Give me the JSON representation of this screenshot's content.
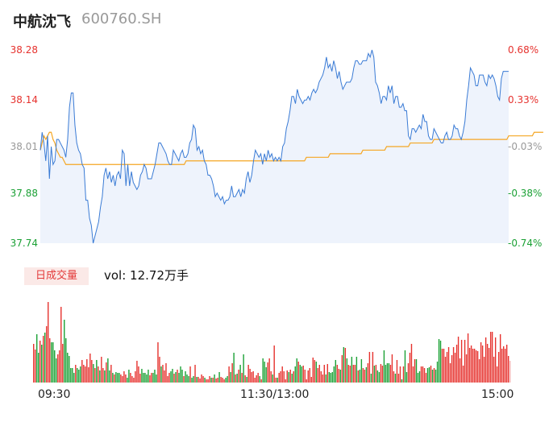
{
  "header": {
    "name": "中航沈飞",
    "code": "600760.SH"
  },
  "colors": {
    "up": "#e6322e",
    "down": "#1ba135",
    "flat": "#999999",
    "price_line": "#3a7bd5",
    "avg_line": "#f5a623",
    "vol_button_bg": "#fbe9e7"
  },
  "volume_panel": {
    "button_label": "日成交量",
    "summary": "vol: 12.72万手"
  },
  "chart_data": [
    {
      "type": "line",
      "title": "",
      "xlabel": "",
      "ylabel": "",
      "x_ticks": [
        "09:30",
        "11:30/13:00",
        "15:00"
      ],
      "y_ticks": [
        {
          "price": "38.28",
          "pct": "0.68%",
          "dir": "up"
        },
        {
          "price": "38.14",
          "pct": "0.33%",
          "dir": "up"
        },
        {
          "price": "38.01",
          "pct": "-0.03%",
          "dir": "flat"
        },
        {
          "price": "37.88",
          "pct": "-0.38%",
          "dir": "down"
        },
        {
          "price": "37.74",
          "pct": "-0.74%",
          "dir": "down"
        }
      ],
      "ylim": [
        37.74,
        38.28
      ],
      "grid": false,
      "series": [
        {
          "values": [
            38.0,
            38.05,
            38.02,
            37.97,
            38.04,
            37.92,
            38.01,
            37.96,
            37.97,
            38.03,
            38.03,
            38.02,
            38.01,
            38.0,
            37.98,
            38.03,
            38.12,
            38.16,
            38.16,
            38.07,
            38.02,
            38.0,
            37.99,
            37.96,
            37.95,
            37.86,
            37.86,
            37.81,
            37.79,
            37.74,
            37.76,
            37.78,
            37.8,
            37.84,
            37.87,
            37.93,
            37.95,
            37.92,
            37.94,
            37.91,
            37.93,
            37.9,
            37.93,
            37.94,
            37.92,
            38.0,
            37.99,
            37.9,
            37.96,
            37.9,
            37.94,
            37.91,
            37.9,
            37.89,
            37.9,
            37.93,
            37.94,
            37.96,
            37.95,
            37.92,
            37.92,
            37.92,
            37.94,
            37.96,
            37.99,
            38.02,
            38.02,
            38.01,
            38.0,
            37.99,
            37.97,
            37.96,
            37.96,
            38.0,
            37.99,
            37.98,
            37.97,
            37.99,
            38.0,
            37.98,
            37.98,
            37.99,
            38.02,
            38.03,
            38.07,
            38.06,
            38.0,
            38.01,
            37.99,
            38.0,
            37.97,
            37.96,
            37.93,
            37.93,
            37.92,
            37.9,
            37.87,
            37.88,
            37.87,
            37.86,
            37.87,
            37.85,
            37.86,
            37.86,
            37.87,
            37.9,
            37.87,
            37.87,
            37.88,
            37.89,
            37.87,
            37.89,
            37.88,
            37.92,
            37.94,
            37.91,
            37.93,
            37.97,
            38.0,
            37.99,
            37.98,
            37.99,
            37.96,
            37.99,
            37.97,
            38.0,
            37.98,
            37.99,
            37.97,
            37.98,
            37.97,
            37.98,
            37.97,
            38.01,
            38.02,
            38.06,
            38.08,
            38.11,
            38.15,
            38.15,
            38.13,
            38.17,
            38.15,
            38.14,
            38.13,
            38.14,
            38.14,
            38.15,
            38.14,
            38.16,
            38.17,
            38.16,
            38.17,
            38.19,
            38.2,
            38.21,
            38.23,
            38.26,
            38.23,
            38.24,
            38.22,
            38.25,
            38.23,
            38.2,
            38.22,
            38.19,
            38.17,
            38.18,
            38.19,
            38.19,
            38.19,
            38.2,
            38.23,
            38.25,
            38.25,
            38.24,
            38.24,
            38.25,
            38.25,
            38.25,
            38.27,
            38.26,
            38.28,
            38.26,
            38.19,
            38.18,
            38.16,
            38.13,
            38.15,
            38.15,
            38.14,
            38.18,
            38.16,
            38.18,
            38.13,
            38.15,
            38.15,
            38.12,
            38.12,
            38.13,
            38.11,
            38.11,
            38.04,
            38.03,
            38.06,
            38.06,
            38.05,
            38.06,
            38.07,
            38.06,
            38.1,
            38.08,
            38.08,
            38.04,
            38.03,
            38.03,
            38.06,
            38.05,
            38.04,
            38.03,
            38.02,
            38.02,
            38.04,
            38.05,
            38.03,
            38.03,
            38.04,
            38.07,
            38.06,
            38.06,
            38.04,
            38.03,
            38.05,
            38.08,
            38.14,
            38.18,
            38.23,
            38.22,
            38.21,
            38.18,
            38.18,
            38.21,
            38.21,
            38.21,
            38.19,
            38.18,
            38.21,
            38.2,
            38.21,
            38.2,
            38.18,
            38.15,
            38.14,
            38.2,
            38.22,
            38.22,
            38.22,
            38.22
          ]
        },
        {
          "values": [
            38.0,
            38.02,
            38.04,
            38.03,
            38.04,
            38.05,
            38.05,
            38.03,
            38.02,
            38.0,
            37.99,
            37.98,
            37.98,
            37.97,
            37.96,
            37.96,
            37.96,
            37.96,
            37.96,
            37.96,
            37.96,
            37.96,
            37.96,
            37.96,
            37.96,
            37.96,
            37.96,
            37.96,
            37.96,
            37.96,
            37.96,
            37.96,
            37.96,
            37.96,
            37.96,
            37.96,
            37.96,
            37.96,
            37.96,
            37.96,
            37.96,
            37.96,
            37.96,
            37.96,
            37.96,
            37.96,
            37.96,
            37.96,
            37.96,
            37.96,
            37.96,
            37.96,
            37.96,
            37.96,
            37.96,
            37.96,
            37.96,
            37.96,
            37.96,
            37.96,
            37.96,
            37.96,
            37.96,
            37.96,
            37.96,
            37.96,
            37.96,
            37.96,
            37.96,
            37.96,
            37.96,
            37.96,
            37.96,
            37.96,
            37.96,
            37.96,
            37.96,
            37.96,
            37.96,
            37.96,
            37.97,
            37.97,
            37.97,
            37.97,
            37.97,
            37.97,
            37.97,
            37.97,
            37.97,
            37.97,
            37.97,
            37.97,
            37.97,
            37.97,
            37.97,
            37.97,
            37.97,
            37.97,
            37.97,
            37.97,
            37.97,
            37.97,
            37.97,
            37.97,
            37.97,
            37.97,
            37.97,
            37.97,
            37.97,
            37.97,
            37.97,
            37.97,
            37.97,
            37.97,
            37.97,
            37.97,
            37.97,
            37.97,
            37.97,
            37.97,
            37.97,
            37.97,
            37.97,
            37.97,
            37.97,
            37.97,
            37.97,
            37.97,
            37.97,
            37.97,
            37.97,
            37.97,
            37.97,
            37.97,
            37.97,
            37.97,
            37.97,
            37.97,
            37.97,
            37.97,
            37.97,
            37.97,
            37.97,
            37.97,
            37.97,
            37.97,
            37.98,
            37.98,
            37.98,
            37.98,
            37.98,
            37.98,
            37.98,
            37.98,
            37.98,
            37.98,
            37.98,
            37.98,
            37.98,
            37.99,
            37.99,
            37.99,
            37.99,
            37.99,
            37.99,
            37.99,
            37.99,
            37.99,
            37.99,
            37.99,
            37.99,
            37.99,
            37.99,
            37.99,
            37.99,
            37.99,
            37.99,
            38.0,
            38.0,
            38.0,
            38.0,
            38.0,
            38.0,
            38.0,
            38.0,
            38.0,
            38.0,
            38.0,
            38.0,
            38.0,
            38.01,
            38.01,
            38.01,
            38.01,
            38.01,
            38.01,
            38.01,
            38.01,
            38.01,
            38.01,
            38.01,
            38.01,
            38.01,
            38.02,
            38.02,
            38.02,
            38.02,
            38.02,
            38.02,
            38.02,
            38.02,
            38.02,
            38.02,
            38.02,
            38.02,
            38.02,
            38.03,
            38.03,
            38.03,
            38.03,
            38.03,
            38.03,
            38.03,
            38.03,
            38.03,
            38.03,
            38.03,
            38.03,
            38.03,
            38.03,
            38.03,
            38.03,
            38.03,
            38.03,
            38.03,
            38.03,
            38.03,
            38.03,
            38.03,
            38.03,
            38.03,
            38.03,
            38.03,
            38.03,
            38.03,
            38.03,
            38.03,
            38.03,
            38.03,
            38.03,
            38.03,
            38.03,
            38.03,
            38.03,
            38.03,
            38.03,
            38.03,
            38.04,
            38.04,
            38.04,
            38.04,
            38.04,
            38.04,
            38.04,
            38.04,
            38.04,
            38.04,
            38.04,
            38.04,
            38.04,
            38.04,
            38.05,
            38.05,
            38.05,
            38.05,
            38.05,
            38.05
          ]
        }
      ]
    },
    {
      "type": "bar",
      "title": "",
      "xlabel": "",
      "ylabel": "",
      "series": [
        {
          "values": [
            48,
            41,
            60,
            37,
            52,
            47,
            58,
            62,
            70,
            100,
            55,
            50,
            50,
            40,
            30,
            35,
            40,
            94,
            48,
            78,
            55,
            37,
            33,
            18,
            18,
            12,
            22,
            18,
            16,
            20,
            28,
            22,
            20,
            29,
            19,
            36,
            28,
            23,
            18,
            28,
            20,
            15,
            32,
            18,
            15,
            25,
            30,
            15,
            22,
            12,
            10,
            13,
            12,
            12,
            10,
            8,
            14,
            10,
            6,
            16,
            12,
            8,
            6,
            14,
            27,
            20,
            11,
            17,
            12,
            12,
            10,
            16,
            9,
            12,
            12,
            16,
            10,
            50,
            32,
            20,
            22,
            15,
            24,
            8,
            12,
            14,
            17,
            11,
            13,
            16,
            12,
            20,
            16,
            8,
            14,
            10,
            8,
            20,
            6,
            8,
            22,
            7,
            7,
            5,
            10,
            8,
            6,
            4,
            4,
            8,
            6,
            6,
            10,
            5,
            6,
            13,
            7,
            6,
            4,
            6,
            8,
            20,
            13,
            24,
            37,
            10,
            11,
            16,
            22,
            12,
            35,
            9,
            7,
            22,
            17,
            13,
            14,
            6,
            9,
            12,
            8,
            4,
            30,
            26,
            19,
            25,
            30,
            14,
            10,
            46,
            6,
            6,
            12,
            14,
            20,
            14,
            4,
            15,
            13,
            16,
            11,
            14,
            20,
            30,
            26,
            22,
            20,
            21,
            16,
            4,
            15,
            18,
            7,
            31,
            28,
            26,
            18,
            22,
            14,
            10,
            22,
            10,
            23,
            13,
            12,
            13,
            20,
            28,
            22,
            17,
            16,
            34,
            44,
            43,
            30,
            22,
            21,
            32,
            22,
            22,
            32,
            15,
            16,
            29,
            18,
            16,
            19,
            24,
            38,
            11,
            38,
            21,
            22,
            15,
            13,
            23,
            21,
            40,
            22,
            24,
            24,
            22,
            35,
            14,
            11,
            28,
            11,
            20,
            4,
            20,
            40,
            13,
            24,
            37,
            48,
            20,
            29,
            29,
            12,
            14,
            20,
            20,
            18,
            12,
            18,
            19,
            21,
            16,
            18,
            16,
            26,
            54,
            52,
            42,
            42,
            32,
            38,
            44,
            24,
            34,
            44,
            37,
            47,
            57,
            30,
            53,
            21,
            53,
            35,
            61,
            43,
            46,
            42,
            42,
            40,
            39,
            29,
            50,
            46,
            32,
            56,
            48,
            43,
            63,
            63,
            32,
            56,
            20,
            38,
            60,
            42,
            45,
            42,
            47,
            33,
            27
          ]
        }
      ]
    }
  ]
}
